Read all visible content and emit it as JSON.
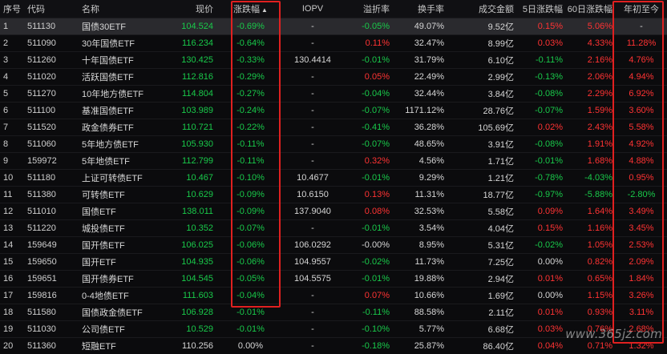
{
  "columns": {
    "index": "序号",
    "code": "代码",
    "name": "名称",
    "price": "现价",
    "change": "涨跌幅",
    "iopv": "IOPV",
    "premium": "溢折率",
    "turnover": "换手率",
    "volume": "成交金额",
    "d5": "5日涨跌幅",
    "d60": "60日涨跌幅",
    "ytd": "年初至今"
  },
  "sort_arrow": "▲",
  "colors": {
    "up": "#ff3333",
    "down": "#19c94a",
    "neutral": "#d6d6d6",
    "highlight": "#e02020"
  },
  "rows": [
    {
      "index": "1",
      "code": "511130",
      "name": "国债30ETF",
      "price": "104.524",
      "change": "-0.69%",
      "iopv": "-",
      "premium": "-0.05%",
      "turnover": "49.07%",
      "volume": "9.52亿",
      "d5": "0.15%",
      "d60": "5.06%",
      "ytd": "-"
    },
    {
      "index": "2",
      "code": "511090",
      "name": "30年国债ETF",
      "price": "116.234",
      "change": "-0.64%",
      "iopv": "-",
      "premium": "0.11%",
      "turnover": "32.47%",
      "volume": "8.99亿",
      "d5": "0.03%",
      "d60": "4.33%",
      "ytd": "11.28%"
    },
    {
      "index": "3",
      "code": "511260",
      "name": "十年国债ETF",
      "price": "130.425",
      "change": "-0.33%",
      "iopv": "130.4414",
      "premium": "-0.01%",
      "turnover": "31.79%",
      "volume": "6.10亿",
      "d5": "-0.11%",
      "d60": "2.16%",
      "ytd": "4.76%"
    },
    {
      "index": "4",
      "code": "511020",
      "name": "活跃国债ETF",
      "price": "112.816",
      "change": "-0.29%",
      "iopv": "-",
      "premium": "0.05%",
      "turnover": "22.49%",
      "volume": "2.99亿",
      "d5": "-0.13%",
      "d60": "2.06%",
      "ytd": "4.94%"
    },
    {
      "index": "5",
      "code": "511270",
      "name": "10年地方债ETF",
      "price": "114.804",
      "change": "-0.27%",
      "iopv": "-",
      "premium": "-0.04%",
      "turnover": "32.44%",
      "volume": "3.84亿",
      "d5": "-0.08%",
      "d60": "2.29%",
      "ytd": "6.92%"
    },
    {
      "index": "6",
      "code": "511100",
      "name": "基准国债ETF",
      "price": "103.989",
      "change": "-0.24%",
      "iopv": "-",
      "premium": "-0.07%",
      "turnover": "1171.12%",
      "volume": "28.76亿",
      "d5": "-0.07%",
      "d60": "1.59%",
      "ytd": "3.60%"
    },
    {
      "index": "7",
      "code": "511520",
      "name": "政金债券ETF",
      "price": "110.721",
      "change": "-0.22%",
      "iopv": "-",
      "premium": "-0.41%",
      "turnover": "36.28%",
      "volume": "105.69亿",
      "d5": "0.02%",
      "d60": "2.43%",
      "ytd": "5.58%"
    },
    {
      "index": "8",
      "code": "511060",
      "name": "5年地方债ETF",
      "price": "105.930",
      "change": "-0.11%",
      "iopv": "-",
      "premium": "-0.07%",
      "turnover": "48.65%",
      "volume": "3.91亿",
      "d5": "-0.08%",
      "d60": "1.91%",
      "ytd": "4.92%"
    },
    {
      "index": "9",
      "code": "159972",
      "name": "5年地债ETF",
      "price": "112.799",
      "change": "-0.11%",
      "iopv": "-",
      "premium": "0.32%",
      "turnover": "4.56%",
      "volume": "1.71亿",
      "d5": "-0.01%",
      "d60": "1.68%",
      "ytd": "4.88%"
    },
    {
      "index": "10",
      "code": "511180",
      "name": "上证可转债ETF",
      "price": "10.467",
      "change": "-0.10%",
      "iopv": "10.4677",
      "premium": "-0.01%",
      "turnover": "9.29%",
      "volume": "1.21亿",
      "d5": "-0.78%",
      "d60": "-4.03%",
      "ytd": "0.95%"
    },
    {
      "index": "11",
      "code": "511380",
      "name": "可转债ETF",
      "price": "10.629",
      "change": "-0.09%",
      "iopv": "10.6150",
      "premium": "0.13%",
      "turnover": "11.31%",
      "volume": "18.77亿",
      "d5": "-0.97%",
      "d60": "-5.88%",
      "ytd": "-2.80%"
    },
    {
      "index": "12",
      "code": "511010",
      "name": "国债ETF",
      "price": "138.011",
      "change": "-0.09%",
      "iopv": "137.9040",
      "premium": "0.08%",
      "turnover": "32.53%",
      "volume": "5.58亿",
      "d5": "0.09%",
      "d60": "1.64%",
      "ytd": "3.49%"
    },
    {
      "index": "13",
      "code": "511220",
      "name": "城投债ETF",
      "price": "10.352",
      "change": "-0.07%",
      "iopv": "-",
      "premium": "-0.01%",
      "turnover": "3.54%",
      "volume": "4.04亿",
      "d5": "0.15%",
      "d60": "1.16%",
      "ytd": "3.45%"
    },
    {
      "index": "14",
      "code": "159649",
      "name": "国开债ETF",
      "price": "106.025",
      "change": "-0.06%",
      "iopv": "106.0292",
      "premium": "-0.00%",
      "turnover": "8.95%",
      "volume": "5.31亿",
      "d5": "-0.02%",
      "d60": "1.05%",
      "ytd": "2.53%"
    },
    {
      "index": "15",
      "code": "159650",
      "name": "国开ETF",
      "price": "104.935",
      "change": "-0.06%",
      "iopv": "104.9557",
      "premium": "-0.02%",
      "turnover": "11.73%",
      "volume": "7.25亿",
      "d5": "0.00%",
      "d60": "0.82%",
      "ytd": "2.09%"
    },
    {
      "index": "16",
      "code": "159651",
      "name": "国开债券ETF",
      "price": "104.545",
      "change": "-0.05%",
      "iopv": "104.5575",
      "premium": "-0.01%",
      "turnover": "19.88%",
      "volume": "2.94亿",
      "d5": "0.01%",
      "d60": "0.65%",
      "ytd": "1.84%"
    },
    {
      "index": "17",
      "code": "159816",
      "name": "0-4地债ETF",
      "price": "111.603",
      "change": "-0.04%",
      "iopv": "-",
      "premium": "0.07%",
      "turnover": "10.66%",
      "volume": "1.69亿",
      "d5": "0.00%",
      "d60": "1.15%",
      "ytd": "3.26%"
    },
    {
      "index": "18",
      "code": "511580",
      "name": "国债政金债ETF",
      "price": "106.928",
      "change": "-0.01%",
      "iopv": "-",
      "premium": "-0.11%",
      "turnover": "88.58%",
      "volume": "2.11亿",
      "d5": "0.01%",
      "d60": "0.93%",
      "ytd": "3.11%"
    },
    {
      "index": "19",
      "code": "511030",
      "name": "公司债ETF",
      "price": "10.529",
      "change": "-0.01%",
      "iopv": "-",
      "premium": "-0.10%",
      "turnover": "5.77%",
      "volume": "6.68亿",
      "d5": "0.03%",
      "d60": "0.76%",
      "ytd": "2.68%"
    },
    {
      "index": "20",
      "code": "511360",
      "name": "短融ETF",
      "price": "110.256",
      "change": "0.00%",
      "iopv": "-",
      "premium": "-0.18%",
      "turnover": "25.87%",
      "volume": "86.40亿",
      "d5": "0.04%",
      "d60": "0.71%",
      "ytd": "1.32%"
    }
  ],
  "watermark": "www.365jz.com"
}
